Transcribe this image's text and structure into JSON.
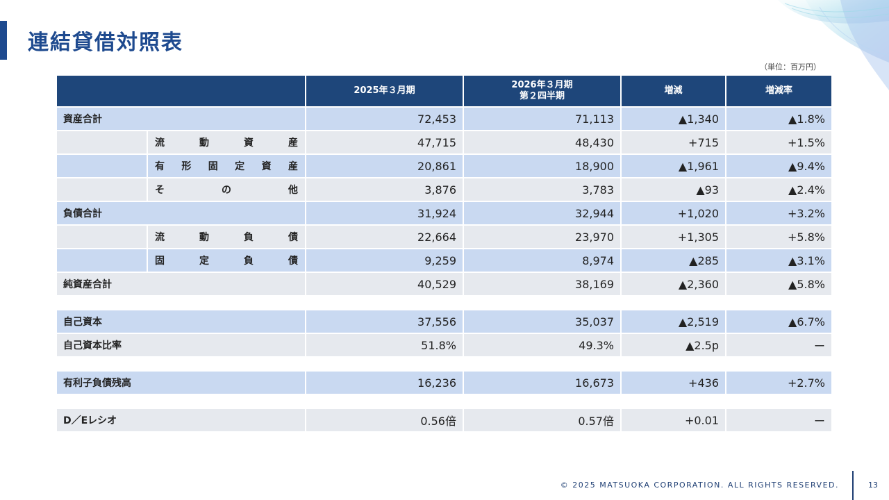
{
  "header": {
    "title": "連結貸借対照表",
    "unit": "（単位：百万円）"
  },
  "columns": {
    "col1": "2025年３月期",
    "col2_line1": "2026年３月期",
    "col2_line2": "第２四半期",
    "col3": "増減",
    "col4": "増減率"
  },
  "rows": [
    {
      "label": "資産合計",
      "v1": "72,453",
      "v2": "71,113",
      "diff": "▲1,340",
      "rate": "▲1.8%"
    },
    {
      "sub": [
        "流",
        "動",
        "資",
        "産"
      ],
      "v1": "47,715",
      "v2": "48,430",
      "diff": "+715",
      "rate": "+1.5%"
    },
    {
      "sub": [
        "有",
        "形",
        "固",
        "定",
        "資",
        "産"
      ],
      "v1": "20,861",
      "v2": "18,900",
      "diff": "▲1,961",
      "rate": "▲9.4%"
    },
    {
      "sub": [
        "そ",
        "の",
        "他"
      ],
      "v1": "3,876",
      "v2": "3,783",
      "diff": "▲93",
      "rate": "▲2.4%"
    },
    {
      "label": "負債合計",
      "v1": "31,924",
      "v2": "32,944",
      "diff": "+1,020",
      "rate": "+3.2%"
    },
    {
      "sub": [
        "流",
        "動",
        "負",
        "債"
      ],
      "v1": "22,664",
      "v2": "23,970",
      "diff": "+1,305",
      "rate": "+5.8%"
    },
    {
      "sub": [
        "固",
        "定",
        "負",
        "債"
      ],
      "v1": "9,259",
      "v2": "8,974",
      "diff": "▲285",
      "rate": "▲3.1%"
    },
    {
      "label": "純資産合計",
      "v1": "40,529",
      "v2": "38,169",
      "diff": "▲2,360",
      "rate": "▲5.8%"
    },
    {
      "label": "自己資本",
      "v1": "37,556",
      "v2": "35,037",
      "diff": "▲2,519",
      "rate": "▲6.7%"
    },
    {
      "label": "自己資本比率",
      "v1": "51.8%",
      "v2": "49.3%",
      "diff": "▲2.5p",
      "rate": "ー"
    },
    {
      "label": "有利子負債残高",
      "v1": "16,236",
      "v2": "16,673",
      "diff": "+436",
      "rate": "+2.7%"
    },
    {
      "label": "D／Eレシオ",
      "v1": "0.56倍",
      "v2": "0.57倍",
      "diff": "+0.01",
      "rate": "ー"
    }
  ],
  "footer": {
    "copyright": "© 2025 MATSUOKA CORPORATION. ALL RIGHTS RESERVED.",
    "page": "13"
  },
  "colors": {
    "accent": "#1e4a8f",
    "header_bg": "#1e467a",
    "row_blue": "#c9d9f1",
    "row_gray": "#e6e9ee"
  }
}
